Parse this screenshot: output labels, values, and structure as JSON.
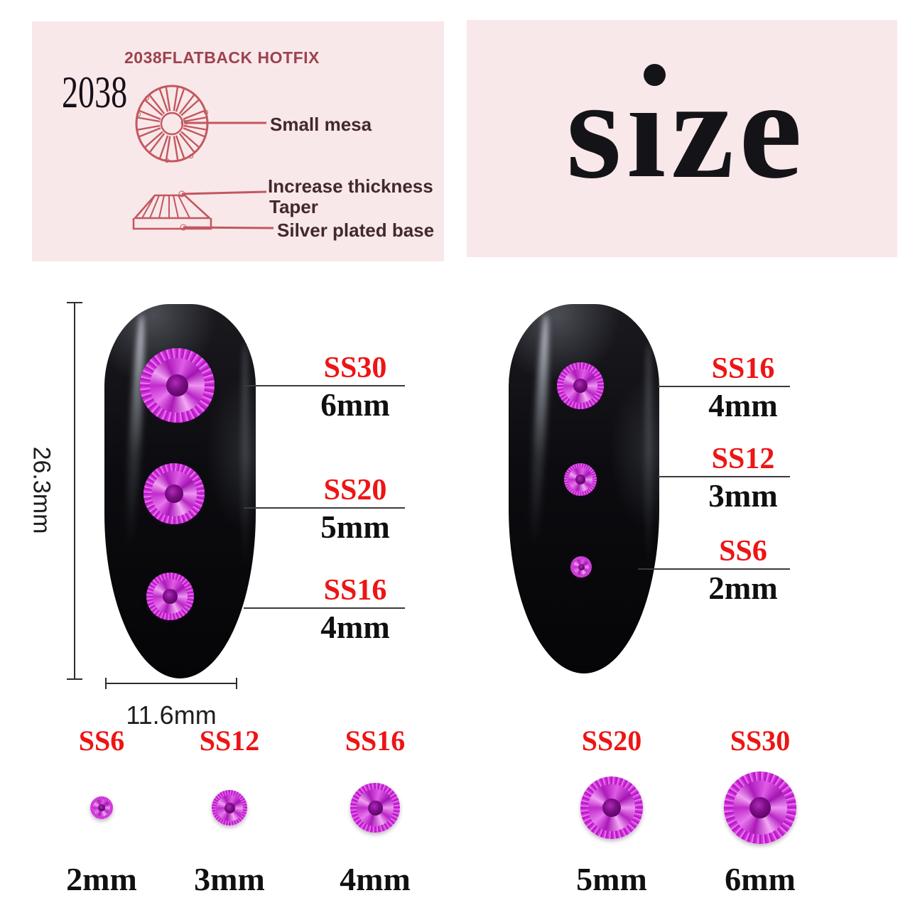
{
  "colors": {
    "panel_pink": "#f9e8ea",
    "accent_red": "#ed1515",
    "diagram_stroke": "#c2585e",
    "heading_maroon": "#9c4350",
    "gem_magenta": "#c524cf",
    "nail_black": "#0c0c10"
  },
  "spec_panel": {
    "heading": "2038FLATBACK HOTFIX",
    "model": "2038",
    "callout_mesa": "Small mesa",
    "callout_thickness": "Increase thickness",
    "callout_taper": "Taper",
    "callout_base": "Silver plated base"
  },
  "size_panel": {
    "word": "size",
    "word_parts": [
      "s",
      "i",
      "z",
      "e"
    ]
  },
  "dimensions": {
    "nail_height": "26.3mm",
    "nail_width": "11.6mm"
  },
  "left_nail_callouts": [
    {
      "ss": "SS30",
      "mm": "6mm"
    },
    {
      "ss": "SS20",
      "mm": "5mm"
    },
    {
      "ss": "SS16",
      "mm": "4mm"
    }
  ],
  "right_nail_callouts": [
    {
      "ss": "SS16",
      "mm": "4mm"
    },
    {
      "ss": "SS12",
      "mm": "3mm"
    },
    {
      "ss": "SS6",
      "mm": "2mm"
    }
  ],
  "size_chart": [
    {
      "ss": "SS6",
      "mm": "2mm"
    },
    {
      "ss": "SS12",
      "mm": "3mm"
    },
    {
      "ss": "SS16",
      "mm": "4mm"
    },
    {
      "ss": "SS20",
      "mm": "5mm"
    },
    {
      "ss": "SS30",
      "mm": "6mm"
    }
  ]
}
